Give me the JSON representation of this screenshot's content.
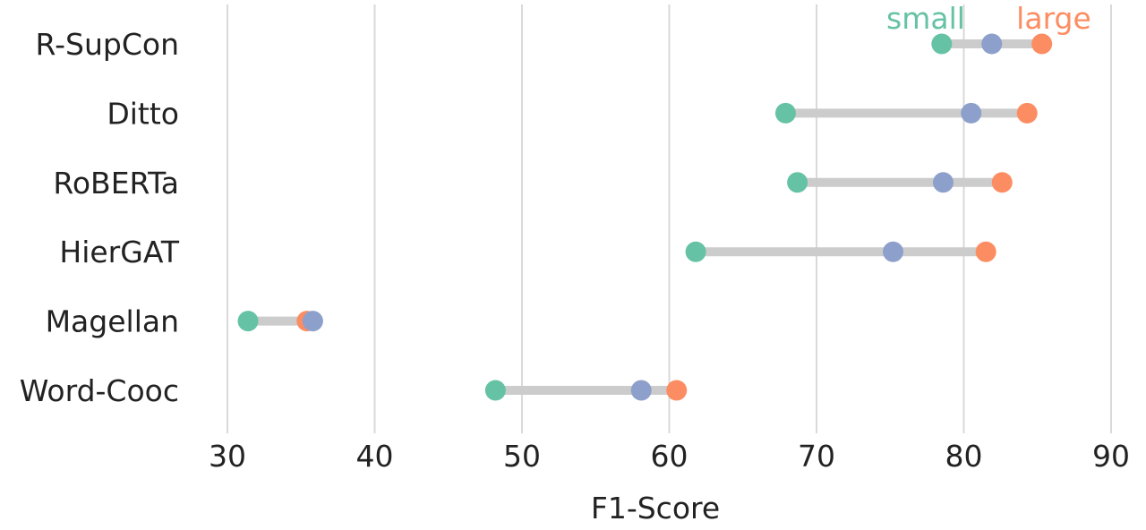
{
  "chart_data": {
    "type": "dumbbell",
    "xlabel": "F1-Score",
    "xlim": [
      27,
      91
    ],
    "xticks": [
      30,
      40,
      50,
      60,
      70,
      80,
      90
    ],
    "grid": "vertical",
    "legend": {
      "placement": "top-right",
      "entries": [
        {
          "name": "small",
          "color": "#66c2a5"
        },
        {
          "name": "large",
          "color": "#fc8d62"
        }
      ]
    },
    "categories": [
      "R-SupCon",
      "Ditto",
      "RoBERTa",
      "HierGAT",
      "Magellan",
      "Word-Cooc"
    ],
    "series": [
      {
        "key": "small",
        "color": "#66c2a5",
        "values": [
          78.5,
          67.9,
          68.7,
          61.8,
          31.4,
          48.2
        ]
      },
      {
        "key": "medium",
        "color": "#8da0cb",
        "values": [
          81.9,
          80.5,
          78.6,
          75.2,
          35.8,
          58.1
        ]
      },
      {
        "key": "large",
        "color": "#fc8d62",
        "values": [
          85.3,
          84.3,
          82.6,
          81.5,
          35.4,
          60.5
        ]
      }
    ]
  }
}
